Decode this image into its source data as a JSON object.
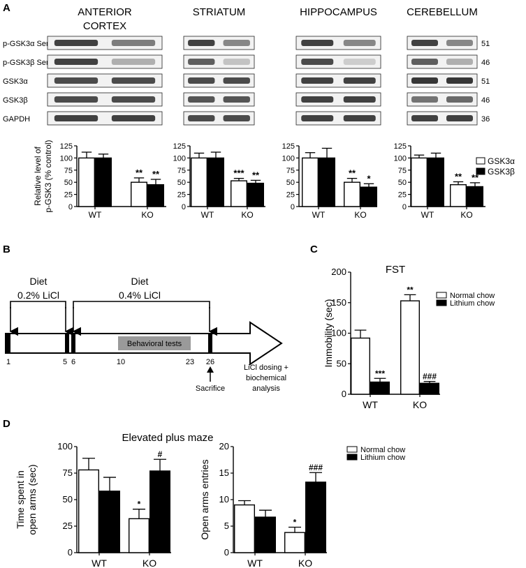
{
  "panel_letters": {
    "a": "A",
    "b": "B",
    "c": "C",
    "d": "D"
  },
  "western": {
    "regions": [
      "ANTERIOR\nCORTEX",
      "STRIATUM",
      "HIPPOCAMPUS",
      "CEREBELLUM"
    ],
    "rows": [
      {
        "label": "p-GSK3α Ser21",
        "kda": "51"
      },
      {
        "label": "p-GSK3β Ser9",
        "kda": "46"
      },
      {
        "label": "GSK3α",
        "kda": "51"
      },
      {
        "label": "GSK3β",
        "kda": "46"
      },
      {
        "label": "GAPDH",
        "kda": "36"
      }
    ],
    "band_intensity": [
      [
        [
          0.85,
          0.55
        ],
        [
          0.85,
          0.5
        ],
        [
          0.85,
          0.5
        ],
        [
          0.85,
          0.5
        ]
      ],
      [
        [
          0.85,
          0.3
        ],
        [
          0.7,
          0.2
        ],
        [
          0.8,
          0.15
        ],
        [
          0.7,
          0.3
        ]
      ],
      [
        [
          0.8,
          0.8
        ],
        [
          0.8,
          0.8
        ],
        [
          0.85,
          0.85
        ],
        [
          0.9,
          0.9
        ]
      ],
      [
        [
          0.8,
          0.8
        ],
        [
          0.75,
          0.75
        ],
        [
          0.85,
          0.85
        ],
        [
          0.6,
          0.65
        ]
      ],
      [
        [
          0.85,
          0.85
        ],
        [
          0.8,
          0.8
        ],
        [
          0.85,
          0.85
        ],
        [
          0.85,
          0.85
        ]
      ]
    ]
  },
  "text": {
    "legendA": [
      "GSK3α",
      "GSK3β"
    ],
    "legendC": [
      "Normal chow",
      "Lithium chow"
    ],
    "legendD": [
      "Normal chow",
      "Lithium chow"
    ],
    "timeline": {
      "diet1_title": "Diet",
      "diet1_dose": "0.2% LiCl",
      "diet2_title": "Diet",
      "diet2_dose": "0.4% LiCl",
      "behavioral": "Behavioral tests",
      "days": [
        "1",
        "5",
        "6",
        "10",
        "23",
        "26"
      ],
      "sacrifice": "Sacrifice",
      "end_note": [
        "LiCl dosing +",
        "biochemical",
        "analysis"
      ]
    },
    "titleD": "Elevated plus maze"
  },
  "colors": {
    "open_bar": "#ffffff",
    "filled_bar": "#000000",
    "behavioral_box": "#9a9a9a"
  },
  "chart_data": [
    {
      "type": "bar",
      "panel": "A-anterior-cortex",
      "categories": [
        "WT",
        "KO"
      ],
      "ylabel": "Relative level of\np-GSK3 (% control)",
      "ylim": [
        0,
        125
      ],
      "yticks": [
        0,
        25,
        50,
        75,
        100,
        125
      ],
      "series": [
        {
          "name": "GSK3α",
          "values": [
            100,
            50
          ],
          "errors": [
            12,
            9
          ],
          "sig": [
            "",
            "**"
          ]
        },
        {
          "name": "GSK3β",
          "values": [
            100,
            45
          ],
          "errors": [
            8,
            11
          ],
          "sig": [
            "",
            "**"
          ]
        }
      ]
    },
    {
      "type": "bar",
      "panel": "A-striatum",
      "categories": [
        "WT",
        "KO"
      ],
      "ylim": [
        0,
        125
      ],
      "yticks": [
        0,
        25,
        50,
        75,
        100,
        125
      ],
      "series": [
        {
          "name": "GSK3α",
          "values": [
            100,
            53
          ],
          "errors": [
            10,
            5
          ],
          "sig": [
            "",
            "***"
          ]
        },
        {
          "name": "GSK3β",
          "values": [
            100,
            48
          ],
          "errors": [
            12,
            6
          ],
          "sig": [
            "",
            "**"
          ]
        }
      ]
    },
    {
      "type": "bar",
      "panel": "A-hippocampus",
      "categories": [
        "WT",
        "KO"
      ],
      "ylim": [
        0,
        125
      ],
      "yticks": [
        0,
        25,
        50,
        75,
        100,
        125
      ],
      "series": [
        {
          "name": "GSK3α",
          "values": [
            100,
            50
          ],
          "errors": [
            11,
            8
          ],
          "sig": [
            "",
            "**"
          ]
        },
        {
          "name": "GSK3β",
          "values": [
            100,
            40
          ],
          "errors": [
            20,
            7
          ],
          "sig": [
            "",
            "*"
          ]
        }
      ]
    },
    {
      "type": "bar",
      "panel": "A-cerebellum",
      "categories": [
        "WT",
        "KO"
      ],
      "ylim": [
        0,
        125
      ],
      "yticks": [
        0,
        25,
        50,
        75,
        100,
        125
      ],
      "series": [
        {
          "name": "GSK3α",
          "values": [
            100,
            45
          ],
          "errors": [
            6,
            6
          ],
          "sig": [
            "",
            "**"
          ]
        },
        {
          "name": "GSK3β",
          "values": [
            100,
            41
          ],
          "errors": [
            10,
            8
          ],
          "sig": [
            "",
            "**"
          ]
        }
      ]
    },
    {
      "type": "bar",
      "panel": "C",
      "title": "FST",
      "categories": [
        "WT",
        "KO"
      ],
      "ylabel": "Immobility (sec)",
      "ylim": [
        0,
        200
      ],
      "yticks": [
        0,
        50,
        100,
        150,
        200
      ],
      "series": [
        {
          "name": "Normal chow",
          "values": [
            92,
            153
          ],
          "errors": [
            13,
            10
          ],
          "sig": [
            "",
            "**"
          ]
        },
        {
          "name": "Lithium chow",
          "values": [
            20,
            18
          ],
          "errors": [
            6,
            3
          ],
          "sig": [
            "***",
            "###"
          ]
        }
      ]
    },
    {
      "type": "bar",
      "panel": "D-time",
      "categories": [
        "WT",
        "KO"
      ],
      "ylabel": "Time spent in\nopen arms (sec)",
      "ylim": [
        0,
        100
      ],
      "yticks": [
        0,
        25,
        50,
        75,
        100
      ],
      "series": [
        {
          "name": "Normal chow",
          "values": [
            78,
            32
          ],
          "errors": [
            11,
            9
          ],
          "sig": [
            "",
            "*"
          ]
        },
        {
          "name": "Lithium chow",
          "values": [
            58,
            77
          ],
          "errors": [
            13,
            11
          ],
          "sig": [
            "",
            "#"
          ]
        }
      ]
    },
    {
      "type": "bar",
      "panel": "D-entries",
      "categories": [
        "WT",
        "KO"
      ],
      "ylabel": "Open arms entries",
      "ylim": [
        0,
        20
      ],
      "yticks": [
        0,
        5,
        10,
        15,
        20
      ],
      "series": [
        {
          "name": "Normal chow",
          "values": [
            9,
            3.8
          ],
          "errors": [
            0.8,
            1
          ],
          "sig": [
            "",
            "*"
          ]
        },
        {
          "name": "Lithium chow",
          "values": [
            6.7,
            13.3
          ],
          "errors": [
            1.3,
            1.8
          ],
          "sig": [
            "",
            "###"
          ]
        }
      ]
    }
  ]
}
